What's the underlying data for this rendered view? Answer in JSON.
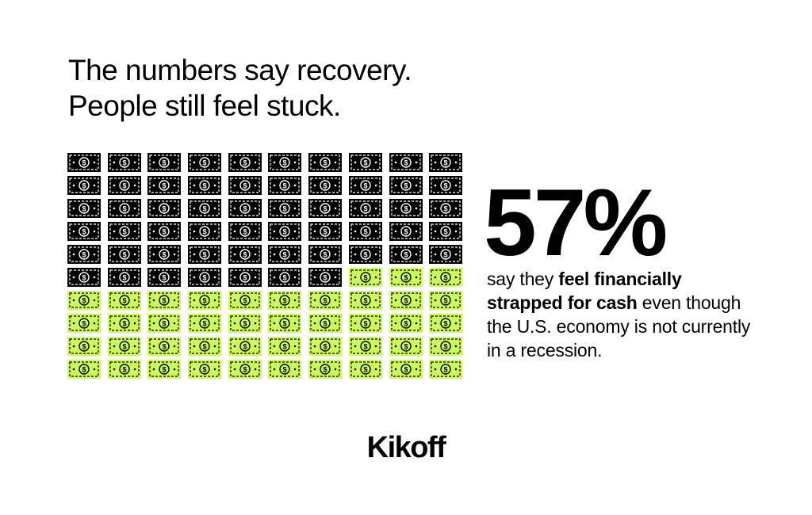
{
  "headline": {
    "line1": "The numbers say recovery.",
    "line2": "People still feel stuck."
  },
  "grid": {
    "total": 100,
    "columns": 10,
    "highlighted": 57,
    "icon": "dollar-bill-icon",
    "colors": {
      "highlighted": "#000000",
      "remaining": "#ccfa5c"
    }
  },
  "stat": {
    "percent": "57%",
    "caption_part1": "say they ",
    "caption_bold": "feel financially strapped for cash",
    "caption_part2": " even though the U.S. economy is not currently in a recession."
  },
  "brand": {
    "name": "Kikoff"
  }
}
